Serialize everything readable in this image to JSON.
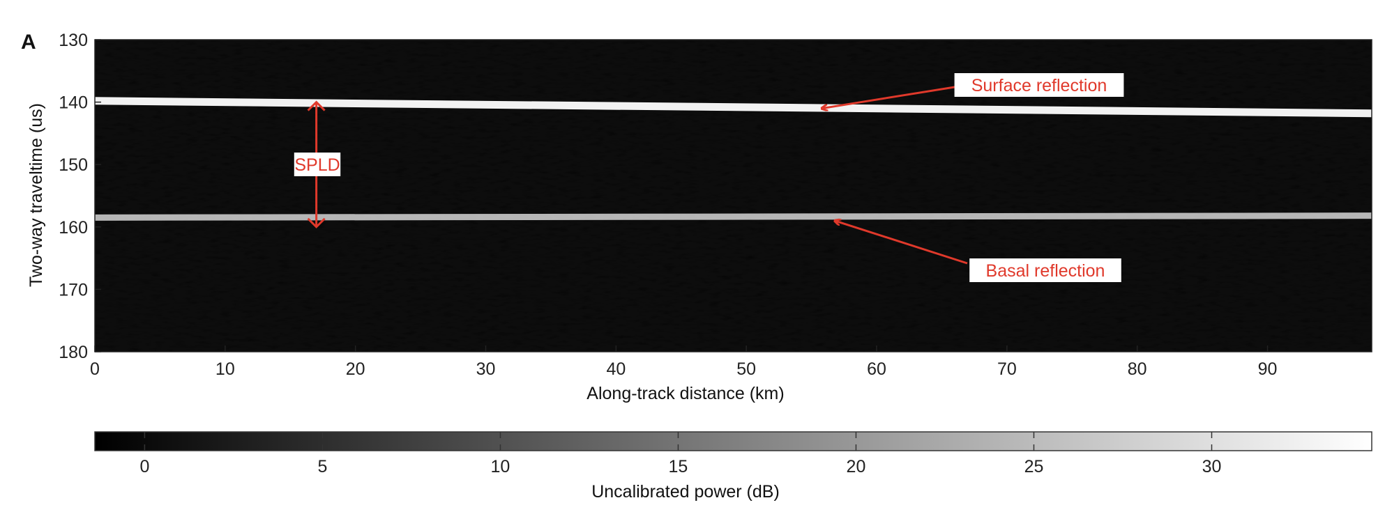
{
  "panel_label": "A",
  "chart_data": {
    "type": "heatmap",
    "title": "",
    "xlabel": "Along-track distance (km)",
    "ylabel": "Two-way traveltime (us)",
    "xlim": [
      0,
      98
    ],
    "ylim": [
      130,
      180
    ],
    "y_inverted": true,
    "x_ticks": [
      0,
      10,
      20,
      30,
      40,
      50,
      60,
      70,
      80,
      90
    ],
    "y_ticks": [
      130,
      140,
      150,
      160,
      170,
      180
    ],
    "grid": false,
    "reflectors": [
      {
        "name": "Surface reflection",
        "traveltime_at_start": 139.8,
        "traveltime_at_end": 141.8
      },
      {
        "name": "Basal reflection",
        "traveltime_at_start": 158.5,
        "traveltime_at_end": 158.2
      }
    ],
    "annotations": [
      {
        "text": "Surface reflection",
        "arrow_target": {
          "x": 55.5,
          "y": 141.0
        }
      },
      {
        "text": "Basal reflection",
        "arrow_target": {
          "x": 56.5,
          "y": 158.8
        }
      },
      {
        "text": "SPLD",
        "span": {
          "x": 17.0,
          "y_from": 140.0,
          "y_to": 160.0
        }
      }
    ],
    "colorbar": {
      "label": "Uncalibrated power (dB)",
      "ticks": [
        0,
        5,
        10,
        15,
        20,
        25,
        30
      ],
      "range": [
        -1.4,
        34.5
      ],
      "colormap": "gray"
    }
  },
  "colors": {
    "annotation": "#e0392b",
    "background": "#ffffff",
    "noise": "#1a1a1a"
  }
}
